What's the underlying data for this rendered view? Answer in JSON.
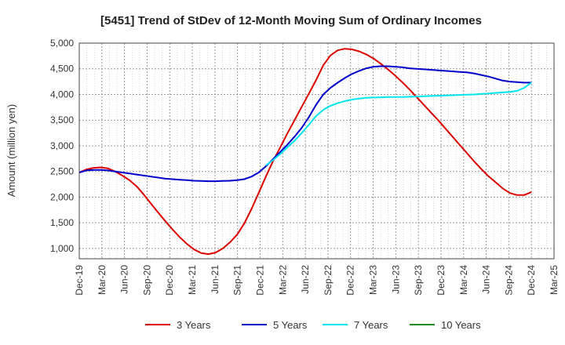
{
  "chart_data": {
    "type": "line",
    "title": "[5451]  Trend of StDev of 12-Month Moving Sum of Ordinary Incomes",
    "xlabel": "",
    "ylabel": "Amount (million yen)",
    "ylim": [
      800,
      5000
    ],
    "y_ticks": [
      1000,
      1500,
      2000,
      2500,
      3000,
      3500,
      4000,
      4500,
      5000
    ],
    "y_tick_labels": [
      "1,000",
      "1,500",
      "2,000",
      "2,500",
      "3,000",
      "3,500",
      "4,000",
      "4,500",
      "5,000"
    ],
    "x_tick_labels": [
      "Dec-19",
      "Mar-20",
      "Jun-20",
      "Sep-20",
      "Dec-20",
      "Mar-21",
      "Jun-21",
      "Sep-21",
      "Dec-21",
      "Mar-22",
      "Jun-22",
      "Sep-22",
      "Dec-22",
      "Mar-23",
      "Jun-23",
      "Sep-23",
      "Dec-23",
      "Mar-24",
      "Jun-24",
      "Sep-24",
      "Dec-24",
      "Mar-25"
    ],
    "grid": true,
    "legend_position": "bottom",
    "series": [
      {
        "name": "3 Years",
        "color": "#dd0000",
        "values": [
          2480,
          2540,
          2570,
          2580,
          2560,
          2500,
          2420,
          2330,
          2210,
          2050,
          1870,
          1700,
          1530,
          1370,
          1220,
          1090,
          980,
          910,
          890,
          920,
          1000,
          1120,
          1270,
          1490,
          1770,
          2080,
          2400,
          2700,
          2970,
          3240,
          3500,
          3760,
          4020,
          4280,
          4570,
          4760,
          4860,
          4890,
          4880,
          4840,
          4780,
          4700,
          4600,
          4490,
          4370,
          4240,
          4100,
          3950,
          3800,
          3650,
          3500,
          3340,
          3180,
          3020,
          2860,
          2700,
          2550,
          2410,
          2290,
          2170,
          2080,
          2040,
          2040,
          2100
        ]
      },
      {
        "name": "5 Years",
        "color": "#0000cc",
        "values": [
          2480,
          2520,
          2530,
          2530,
          2520,
          2500,
          2480,
          2460,
          2440,
          2420,
          2400,
          2380,
          2360,
          2350,
          2340,
          2330,
          2320,
          2315,
          2310,
          2310,
          2315,
          2320,
          2330,
          2350,
          2400,
          2480,
          2600,
          2740,
          2880,
          3020,
          3180,
          3350,
          3560,
          3800,
          4000,
          4130,
          4230,
          4320,
          4400,
          4460,
          4510,
          4540,
          4550,
          4550,
          4540,
          4530,
          4510,
          4500,
          4490,
          4480,
          4470,
          4460,
          4450,
          4440,
          4430,
          4410,
          4380,
          4350,
          4310,
          4270,
          4250,
          4240,
          4230,
          4230
        ]
      },
      {
        "name": "7 Years",
        "color": "#00e5ee",
        "values": [
          null,
          null,
          null,
          null,
          null,
          null,
          null,
          null,
          null,
          null,
          null,
          null,
          null,
          null,
          null,
          null,
          null,
          null,
          null,
          null,
          null,
          null,
          null,
          null,
          null,
          null,
          2620,
          2720,
          2840,
          2970,
          3100,
          3250,
          3410,
          3580,
          3700,
          3780,
          3830,
          3870,
          3900,
          3920,
          3935,
          3940,
          3945,
          3950,
          3950,
          3950,
          3955,
          3960,
          3965,
          3970,
          3975,
          3980,
          3985,
          3990,
          3995,
          4000,
          4010,
          4020,
          4030,
          4040,
          4050,
          4070,
          4130,
          4230
        ]
      },
      {
        "name": "10 Years",
        "color": "#228b22",
        "values": []
      }
    ]
  }
}
